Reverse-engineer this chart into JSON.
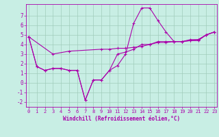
{
  "title": "",
  "xlabel": "Windchill (Refroidissement éolien,°C)",
  "bg_color": "#c8eee4",
  "grid_color": "#a0ccbb",
  "line_color": "#aa00aa",
  "x_min": 0,
  "x_max": 23,
  "y_min": -2.5,
  "y_max": 8.2,
  "yticks": [
    -2,
    -1,
    0,
    1,
    2,
    3,
    4,
    5,
    6,
    7
  ],
  "line1_x": [
    0,
    1,
    2,
    3,
    4,
    5,
    6,
    7,
    8,
    9,
    10,
    11,
    12,
    13,
    14,
    15,
    16,
    17,
    18,
    19,
    20,
    21,
    22,
    23
  ],
  "line1_y": [
    4.8,
    1.7,
    1.3,
    1.5,
    1.5,
    1.3,
    1.3,
    -1.8,
    0.3,
    0.3,
    1.3,
    1.8,
    3.0,
    6.2,
    7.8,
    7.8,
    6.5,
    5.3,
    4.3,
    4.3,
    4.4,
    4.5,
    5.0,
    5.3
  ],
  "line2_x": [
    0,
    3,
    5,
    9,
    10,
    11,
    12,
    13,
    14,
    15,
    16,
    17,
    18,
    19,
    20,
    21,
    22,
    23
  ],
  "line2_y": [
    4.8,
    3.0,
    3.3,
    3.5,
    3.5,
    3.6,
    3.6,
    3.7,
    3.8,
    4.0,
    4.2,
    4.2,
    4.3,
    4.3,
    4.4,
    4.4,
    5.0,
    5.3
  ],
  "line3_x": [
    0,
    1,
    2,
    3,
    4,
    5,
    6,
    7,
    8,
    9,
    10,
    11,
    12,
    13,
    14,
    15,
    16,
    17,
    18,
    19,
    20,
    21,
    22,
    23
  ],
  "line3_y": [
    4.8,
    1.7,
    1.3,
    1.5,
    1.5,
    1.3,
    1.3,
    -1.8,
    0.3,
    0.3,
    1.3,
    3.0,
    3.2,
    3.5,
    4.0,
    4.0,
    4.3,
    4.3,
    4.3,
    4.3,
    4.5,
    4.5,
    5.0,
    5.3
  ],
  "xlabel_fontsize": 5.5,
  "tick_fontsize": 5,
  "ytick_fontsize": 5.5,
  "linewidth": 0.8,
  "markersize": 2.5
}
